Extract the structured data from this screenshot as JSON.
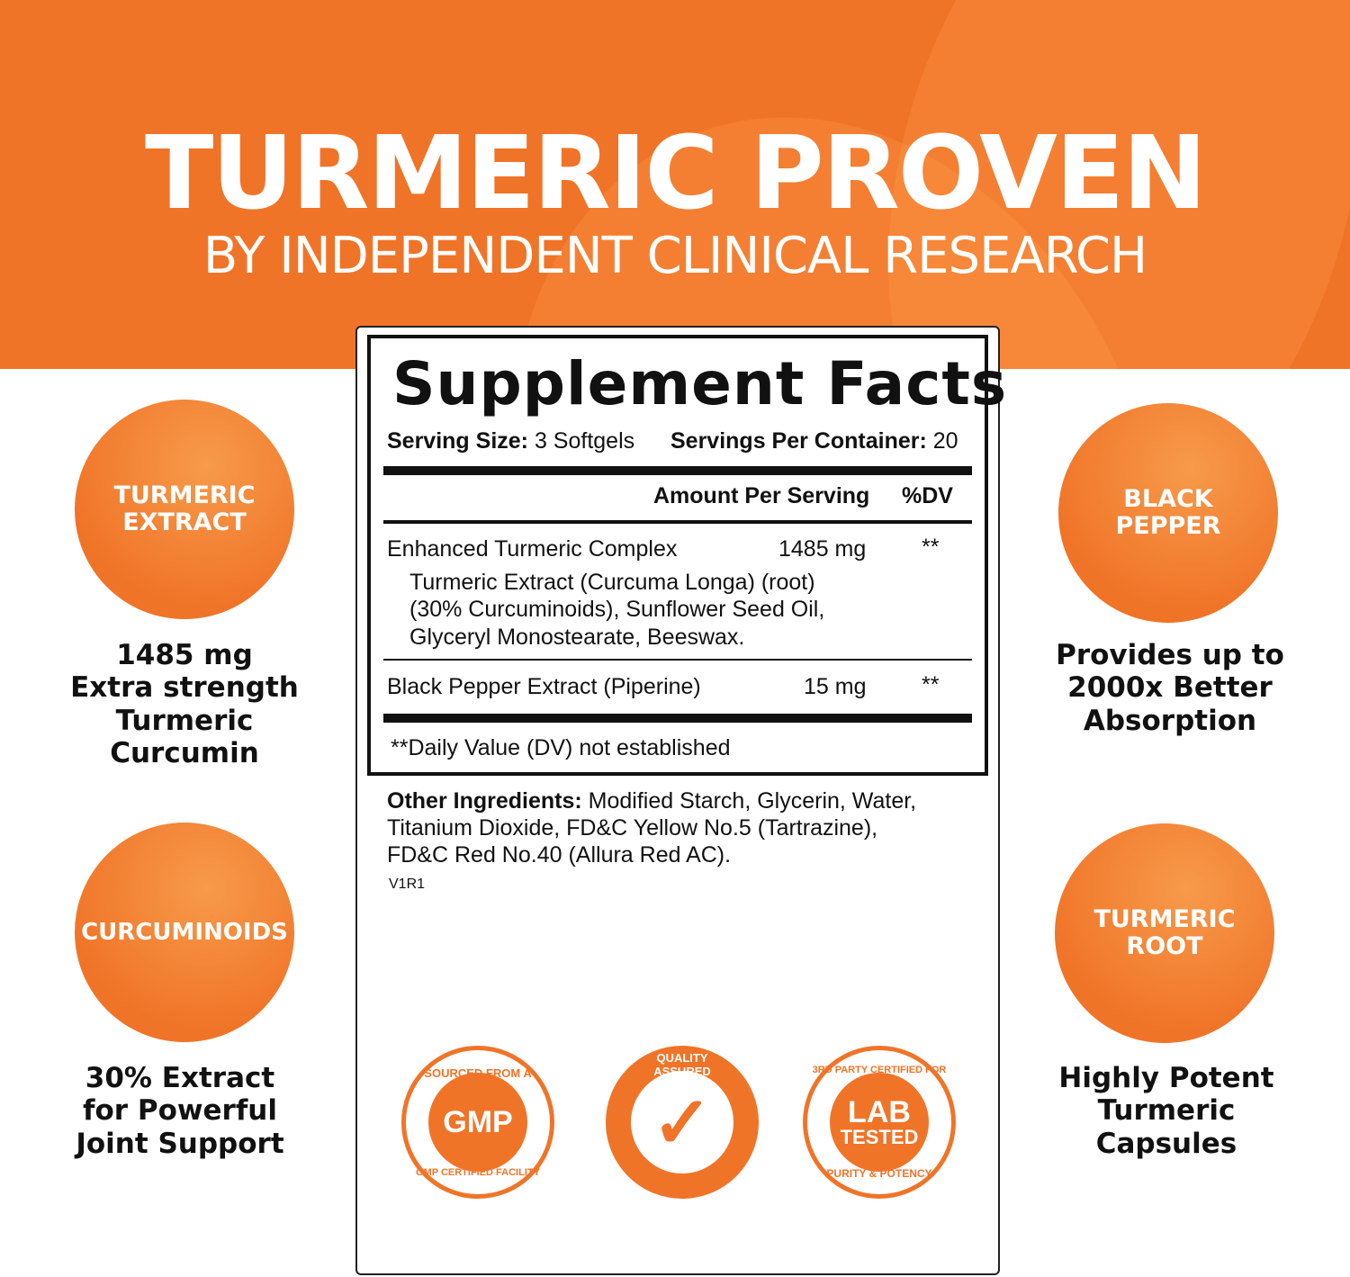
{
  "banner": {
    "title": "TURMERIC PROVEN",
    "subtitle": "BY INDEPENDENT CLINICAL RESEARCH",
    "color": "#f07428"
  },
  "facts": {
    "heading": "Supplement Facts",
    "serving_size_label": "Serving Size:",
    "serving_size": "3 Softgels",
    "servings_label": "Servings Per Container:",
    "servings": "20",
    "amount_header": "Amount Per Serving",
    "dv_header": "%DV",
    "rows": [
      {
        "name": "Enhanced Turmeric Complex",
        "amount": "1485 mg",
        "dv": "**",
        "detail": [
          "Turmeric Extract (Curcuma Longa) (root)",
          "(30% Curcuminoids), Sunflower Seed Oil,",
          "Glyceryl Monostearate, Beeswax."
        ]
      },
      {
        "name": "Black Pepper Extract (Piperine)",
        "amount": "15 mg",
        "dv": "**"
      }
    ],
    "footnote": "**Daily Value (DV) not established"
  },
  "other": {
    "label": "Other Ingredients:",
    "lines": [
      "Modified Starch, Glycerin, Water,",
      "Titanium Dioxide, FD&C Yellow No.5 (Tartrazine),",
      "FD&C Red No.40 (Allura Red AC)."
    ],
    "code": "V1R1"
  },
  "features": [
    {
      "circle": "TURMERIC\nEXTRACT",
      "caption": "1485 mg\nExtra strength\nTurmeric\nCurcumin"
    },
    {
      "circle": "CURCUMINOIDS",
      "caption": "30% Extract\nfor Powerful\nJoint Support"
    },
    {
      "circle": "BLACK\nPEPPER",
      "caption": "Provides up to\n2000x Better\nAbsorption"
    },
    {
      "circle": "TURMERIC\nROOT",
      "caption": "Highly Potent\nTurmeric\nCapsules"
    }
  ],
  "badges": [
    {
      "top": "SOURCED FROM A",
      "center": "GMP",
      "bottom": "GMP CERTIFIED FACILITY"
    },
    {
      "top": "QUALITY ASSURED",
      "icon": "checkmark-icon"
    },
    {
      "top": "3RD PARTY CERTIFIED FOR",
      "center": "LAB",
      "center2": "TESTED",
      "bottom": "PURITY & POTENCY"
    }
  ]
}
